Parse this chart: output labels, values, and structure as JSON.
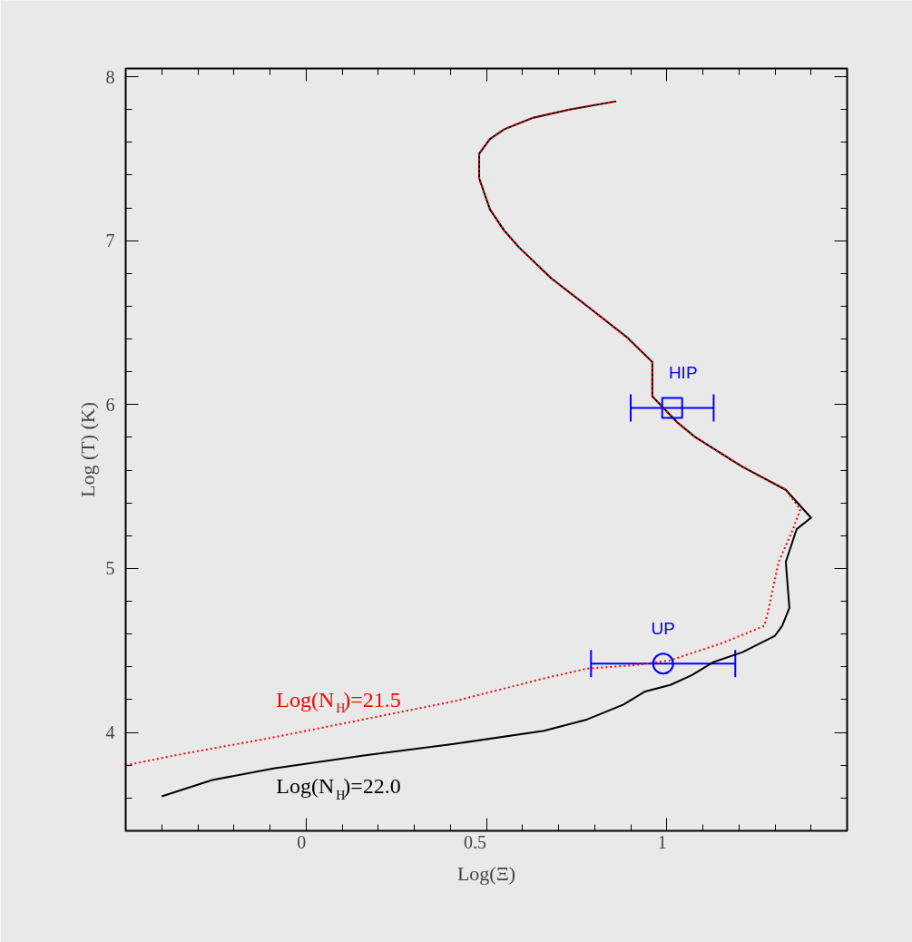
{
  "chart_data": {
    "type": "line",
    "xlabel": "Log(Ξ)",
    "ylabel": "Log (T) (K)",
    "xlim": [
      -0.5,
      1.5
    ],
    "ylim": [
      3.4,
      8.05
    ],
    "xticks": [
      {
        "value": -0.4,
        "label": null
      },
      {
        "value": -0.3,
        "label": null
      },
      {
        "value": -0.2,
        "label": null
      },
      {
        "value": -0.1,
        "label": null
      },
      0,
      {
        "value": 0.1,
        "label": null
      },
      {
        "value": 0.2,
        "label": null
      },
      {
        "value": 0.3,
        "label": null
      },
      {
        "value": 0.4,
        "label": null
      },
      0.5,
      {
        "value": 0.6,
        "label": null
      },
      {
        "value": 0.7,
        "label": null
      },
      {
        "value": 0.8,
        "label": null
      },
      {
        "value": 0.9,
        "label": null
      },
      1,
      {
        "value": 1.1,
        "label": null
      },
      {
        "value": 1.2,
        "label": null
      },
      {
        "value": 1.3,
        "label": null
      },
      {
        "value": 1.4,
        "label": null
      }
    ],
    "yticks": [
      {
        "value": 3.6,
        "label": null
      },
      {
        "value": 3.8,
        "label": null
      },
      4,
      {
        "value": 4.2,
        "label": null
      },
      {
        "value": 4.4,
        "label": null
      },
      {
        "value": 4.6,
        "label": null
      },
      {
        "value": 4.8,
        "label": null
      },
      5,
      {
        "value": 5.2,
        "label": null
      },
      {
        "value": 5.4,
        "label": null
      },
      {
        "value": 5.6,
        "label": null
      },
      {
        "value": 5.8,
        "label": null
      },
      6,
      {
        "value": 6.2,
        "label": null
      },
      {
        "value": 6.4,
        "label": null
      },
      {
        "value": 6.6,
        "label": null
      },
      {
        "value": 6.8,
        "label": null
      },
      7,
      {
        "value": 7.2,
        "label": null
      },
      {
        "value": 7.4,
        "label": null
      },
      {
        "value": 7.6,
        "label": null
      },
      {
        "value": 7.8,
        "label": null
      },
      8
    ],
    "grid": false,
    "series": [
      {
        "name": "Log(N$_{H}$)=22.0",
        "color": "#000000",
        "line_style": "solid",
        "x": [
          -0.4,
          -0.26,
          -0.09,
          0.16,
          0.41,
          0.66,
          0.78,
          0.88,
          0.94,
          1.01,
          1.07,
          1.13,
          1.21,
          1.3,
          1.32,
          1.34,
          1.33,
          1.36,
          1.4,
          1.33,
          1.21,
          1.08,
          1.03,
          0.96,
          0.96,
          0.89,
          0.78,
          0.68,
          0.59,
          0.55,
          0.51,
          0.48,
          0.48,
          0.51,
          0.55,
          0.63,
          0.73,
          0.86
        ],
        "values": [
          3.61,
          3.71,
          3.78,
          3.86,
          3.93,
          4.01,
          4.08,
          4.17,
          4.25,
          4.29,
          4.35,
          4.43,
          4.49,
          4.59,
          4.65,
          4.76,
          5.04,
          5.24,
          5.31,
          5.48,
          5.62,
          5.8,
          5.89,
          6.05,
          6.26,
          6.41,
          6.6,
          6.77,
          6.96,
          7.06,
          7.19,
          7.38,
          7.53,
          7.62,
          7.68,
          7.75,
          7.8,
          7.85
        ]
      },
      {
        "name": "Log(N$_{H}$)=21.5",
        "color": "#ff0000",
        "line_style": "dotted",
        "x": [
          -0.5,
          -0.34,
          -0.09,
          0.16,
          0.41,
          0.66,
          0.78,
          0.91,
          1.01,
          1.16,
          1.27,
          1.28,
          1.31,
          1.35,
          1.37,
          1.33,
          1.21,
          1.08,
          1.03,
          0.96,
          0.96,
          0.89,
          0.78,
          0.68,
          0.59,
          0.55,
          0.51,
          0.48,
          0.48,
          0.51,
          0.55,
          0.63,
          0.73,
          0.86
        ],
        "values": [
          3.8,
          3.87,
          3.97,
          4.08,
          4.19,
          4.33,
          4.39,
          4.41,
          4.44,
          4.55,
          4.65,
          4.73,
          5.04,
          5.24,
          5.36,
          5.48,
          5.62,
          5.8,
          5.89,
          6.05,
          6.26,
          6.41,
          6.6,
          6.77,
          6.96,
          7.06,
          7.19,
          7.38,
          7.53,
          7.62,
          7.68,
          7.75,
          7.8,
          7.85
        ]
      },
      {
        "name": "HIP",
        "type": "scatter",
        "marker": "square",
        "color": "#0000ff",
        "x": [
          1.015
        ],
        "values": [
          5.98
        ],
        "xerrors": [
          [
            0.9,
            1.13
          ]
        ]
      },
      {
        "name": "UP",
        "type": "scatter",
        "marker": "circle",
        "color": "#0000ff",
        "x": [
          0.99
        ],
        "values": [
          4.42
        ],
        "xerrors": [
          [
            0.79,
            1.19
          ]
        ]
      }
    ]
  }
}
